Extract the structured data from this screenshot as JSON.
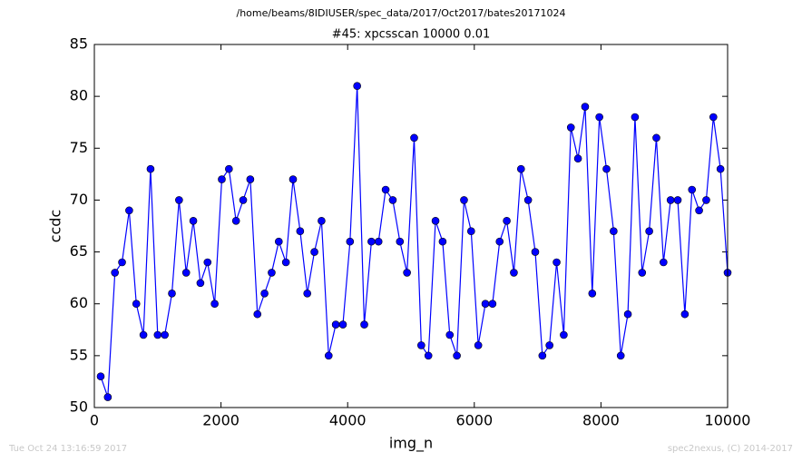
{
  "chart_data": {
    "type": "line",
    "suptitle": "/home/beams/8IDIUSER/spec_data/2017/Oct2017/bates20171024",
    "title": "#45: xpcsscan 10000 0.01",
    "xlabel": "img_n",
    "ylabel": "ccdc",
    "footer_left": "Tue Oct 24 13:16:59 2017",
    "footer_right": "spec2nexus, (C) 2014-2017",
    "x": [
      100,
      212.5,
      325,
      437.5,
      550,
      662.5,
      775,
      887.5,
      1000,
      1112.5,
      1225,
      1337.5,
      1450,
      1562.5,
      1675,
      1787.5,
      1900,
      2012.5,
      2125,
      2237.5,
      2350,
      2462.5,
      2575,
      2687.5,
      2800,
      2912.5,
      3025,
      3137.5,
      3250,
      3362.5,
      3475,
      3587.5,
      3700,
      3812.5,
      3925,
      4037.5,
      4150,
      4262.5,
      4375,
      4487.5,
      4600,
      4712.5,
      4825,
      4937.5,
      5050,
      5162.5,
      5275,
      5387.5,
      5500,
      5612.5,
      5725,
      5837.5,
      5950,
      6062.5,
      6175,
      6287.5,
      6400,
      6512.5,
      6625,
      6737.5,
      6850,
      6962.5,
      7075,
      7187.5,
      7300,
      7412.5,
      7525,
      7637.5,
      7750,
      7862.5,
      7975,
      8087.5,
      8200,
      8312.5,
      8425,
      8537.5,
      8650,
      8762.5,
      8875,
      8987.5,
      9100,
      9212.5,
      9325,
      9437.5,
      9550,
      9662.5,
      9775,
      9887.5,
      10000
    ],
    "series": [
      {
        "name": "ccdc",
        "color": "#0000ff",
        "values": [
          53,
          51,
          63,
          64,
          69,
          60,
          57,
          73,
          57,
          57,
          61,
          70,
          63,
          68,
          62,
          64,
          60,
          72,
          73,
          68,
          70,
          72,
          59,
          61,
          63,
          66,
          64,
          72,
          67,
          61,
          65,
          68,
          55,
          58,
          58,
          66,
          81,
          58,
          66,
          66,
          71,
          70,
          66,
          63,
          76,
          56,
          55,
          68,
          66,
          57,
          55,
          70,
          67,
          56,
          60,
          60,
          66,
          68,
          63,
          73,
          70,
          65,
          55,
          56,
          64,
          57,
          77,
          74,
          79,
          61,
          78,
          73,
          67,
          55,
          59,
          78,
          63,
          67,
          76,
          64,
          70,
          70,
          59,
          71,
          69,
          70,
          78,
          73,
          63
        ]
      }
    ],
    "xlim": [
      0,
      10000
    ],
    "ylim": [
      50,
      85
    ],
    "xticks": [
      0,
      2000,
      4000,
      6000,
      8000,
      10000
    ],
    "yticks": [
      50,
      55,
      60,
      65,
      70,
      75,
      80,
      85
    ]
  }
}
